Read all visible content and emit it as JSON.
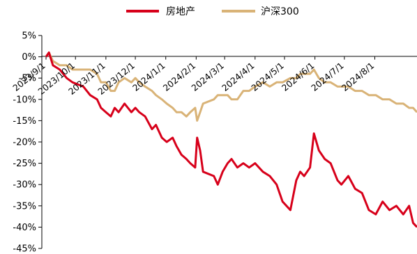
{
  "chart_data": {
    "type": "line",
    "title": "",
    "xlabel": "",
    "ylabel": "",
    "ylim": [
      -45,
      5
    ],
    "y_ticks": [
      "5%",
      "0%",
      "-5%",
      "-10%",
      "-15%",
      "-20%",
      "-25%",
      "-30%",
      "-35%",
      "-40%",
      "-45%"
    ],
    "y_tick_values": [
      5,
      0,
      -5,
      -10,
      -15,
      -20,
      -25,
      -30,
      -35,
      -40,
      -45
    ],
    "x_ticks": [
      "2023/9/1",
      "2023/10/1",
      "2023/11/1",
      "2023/12/1",
      "2024/1/1",
      "2024/2/1",
      "2024/3/1",
      "2024/4/1",
      "2024/5/1",
      "2024/6/1",
      "2024/7/1",
      "2024/8/1"
    ],
    "x_tick_values": [
      "2023-09-01",
      "2023-10-01",
      "2023-11-01",
      "2023-12-01",
      "2024-01-01",
      "2024-02-01",
      "2024-03-01",
      "2024-04-01",
      "2024-05-01",
      "2024-06-01",
      "2024-07-01",
      "2024-08-01"
    ],
    "xlim": [
      "2023-09-01",
      "2024-09-13"
    ],
    "grid": false,
    "legend_position": "top-center",
    "series": [
      {
        "name": "房地产",
        "color": "#d7001a",
        "x": [
          "2023-09-01",
          "2023-09-04",
          "2023-09-08",
          "2023-09-15",
          "2023-09-22",
          "2023-09-28",
          "2023-10-09",
          "2023-10-16",
          "2023-10-23",
          "2023-10-27",
          "2023-11-01",
          "2023-11-06",
          "2023-11-10",
          "2023-11-14",
          "2023-11-20",
          "2023-11-27",
          "2023-12-01",
          "2023-12-05",
          "2023-12-11",
          "2023-12-18",
          "2023-12-22",
          "2023-12-28",
          "2024-01-02",
          "2024-01-08",
          "2024-01-12",
          "2024-01-17",
          "2024-01-22",
          "2024-01-26",
          "2024-01-31",
          "2024-02-02",
          "2024-02-05",
          "2024-02-08",
          "2024-02-19",
          "2024-02-23",
          "2024-02-28",
          "2024-03-04",
          "2024-03-08",
          "2024-03-14",
          "2024-03-20",
          "2024-03-26",
          "2024-04-01",
          "2024-04-09",
          "2024-04-16",
          "2024-04-23",
          "2024-04-29",
          "2024-05-07",
          "2024-05-13",
          "2024-05-17",
          "2024-05-21",
          "2024-05-27",
          "2024-05-31",
          "2024-06-05",
          "2024-06-11",
          "2024-06-17",
          "2024-06-24",
          "2024-06-28",
          "2024-07-05",
          "2024-07-12",
          "2024-07-19",
          "2024-07-26",
          "2024-08-02",
          "2024-08-09",
          "2024-08-16",
          "2024-08-23",
          "2024-08-30",
          "2024-09-05",
          "2024-09-09",
          "2024-09-13"
        ],
        "values": [
          0,
          1,
          -2,
          -3,
          -5,
          -6,
          -7,
          -9,
          -10,
          -12,
          -13,
          -14,
          -12,
          -13,
          -11,
          -13,
          -12,
          -13,
          -14,
          -17,
          -16,
          -19,
          -20,
          -19,
          -21,
          -23,
          -24,
          -25,
          -26,
          -19,
          -22,
          -27,
          -28,
          -30,
          -27,
          -25,
          -24,
          -26,
          -25,
          -26,
          -25,
          -27,
          -28,
          -30,
          -34,
          -36,
          -29,
          -27,
          -28,
          -26,
          -18,
          -22,
          -24,
          -25,
          -29,
          -30,
          -28,
          -31,
          -32,
          -36,
          -37,
          -34,
          -36,
          -35,
          -37,
          -35,
          -39,
          -40
        ]
      },
      {
        "name": "沪深300",
        "color": "#d9b377",
        "x": [
          "2023-09-01",
          "2023-09-04",
          "2023-09-08",
          "2023-09-15",
          "2023-09-22",
          "2023-09-28",
          "2023-10-09",
          "2023-10-16",
          "2023-10-23",
          "2023-10-27",
          "2023-11-01",
          "2023-11-06",
          "2023-11-10",
          "2023-11-14",
          "2023-11-20",
          "2023-11-27",
          "2023-12-01",
          "2023-12-05",
          "2023-12-11",
          "2023-12-18",
          "2023-12-22",
          "2023-12-28",
          "2024-01-02",
          "2024-01-08",
          "2024-01-12",
          "2024-01-17",
          "2024-01-22",
          "2024-01-26",
          "2024-01-31",
          "2024-02-02",
          "2024-02-05",
          "2024-02-08",
          "2024-02-19",
          "2024-02-23",
          "2024-02-28",
          "2024-03-04",
          "2024-03-08",
          "2024-03-14",
          "2024-03-20",
          "2024-03-26",
          "2024-04-01",
          "2024-04-09",
          "2024-04-16",
          "2024-04-23",
          "2024-04-29",
          "2024-05-07",
          "2024-05-13",
          "2024-05-17",
          "2024-05-21",
          "2024-05-27",
          "2024-05-31",
          "2024-06-05",
          "2024-06-11",
          "2024-06-17",
          "2024-06-24",
          "2024-06-28",
          "2024-07-05",
          "2024-07-12",
          "2024-07-19",
          "2024-07-26",
          "2024-08-02",
          "2024-08-09",
          "2024-08-16",
          "2024-08-23",
          "2024-08-30",
          "2024-09-05",
          "2024-09-09",
          "2024-09-13"
        ],
        "values": [
          0,
          1,
          -1,
          -2,
          -2,
          -3,
          -3,
          -3,
          -4,
          -6,
          -6,
          -8,
          -8,
          -6,
          -5,
          -6,
          -5,
          -6,
          -7,
          -8,
          -9,
          -10,
          -11,
          -12,
          -13,
          -13,
          -14,
          -13,
          -12,
          -15,
          -13,
          -11,
          -10,
          -9,
          -9,
          -9,
          -10,
          -10,
          -8,
          -8,
          -7,
          -6,
          -7,
          -6,
          -6,
          -5,
          -5,
          -4,
          -4,
          -4,
          -3,
          -5,
          -6,
          -6,
          -7,
          -7,
          -7,
          -8,
          -8,
          -9,
          -9,
          -10,
          -10,
          -11,
          -11,
          -12,
          -12,
          -13
        ]
      }
    ]
  }
}
